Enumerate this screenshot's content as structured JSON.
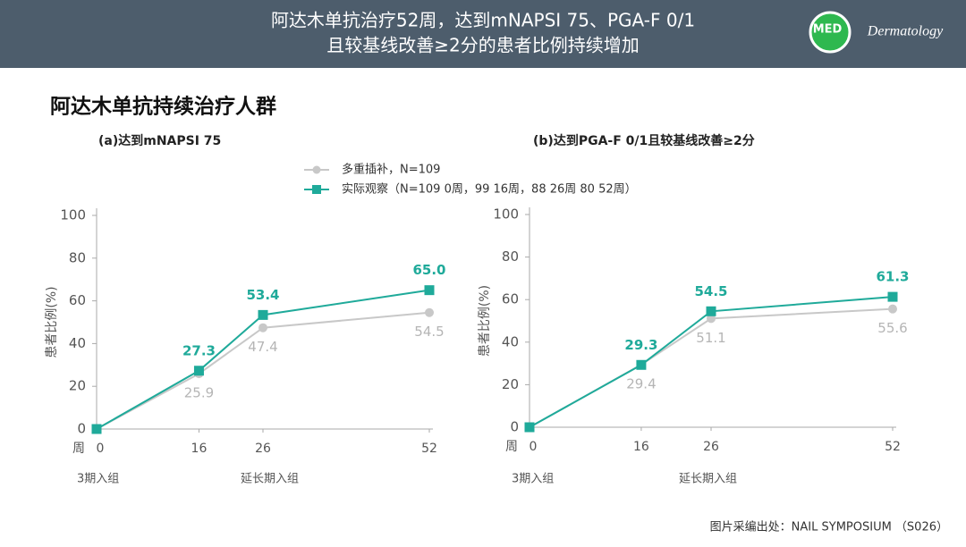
{
  "header": {
    "title_line1": "阿达木单抗治疗52周，达到mNAPSI 75、PGA-F 0/1",
    "title_line2": "且较基线改善≥2分的患者比例持续增加",
    "logo": "MED",
    "brand": "Dermatology"
  },
  "section_title": "阿达木单抗持续治疗人群",
  "footer": "图片采编出处：NAIL SYMPOSIUM （S026）",
  "chart_data": [
    {
      "type": "line",
      "title": "(a)达到mNAPSI 75",
      "ylabel": "患者比例(%)",
      "xlabel": "周",
      "x": [
        0,
        16,
        26,
        52
      ],
      "xlim": [
        0,
        52
      ],
      "xticks": [
        0,
        16,
        26,
        52
      ],
      "ylim": [
        0,
        100
      ],
      "yticks": [
        0,
        20,
        40,
        60,
        80,
        100
      ],
      "annotations": [
        "3期入组",
        "延长期入组"
      ],
      "series": [
        {
          "name": "多重插补，N=109",
          "color": "#c8c8c8",
          "marker": "circle",
          "values": [
            0,
            25.9,
            47.4,
            54.5
          ],
          "value_labels": [
            null,
            "25.9",
            "47.4",
            "54.5"
          ]
        },
        {
          "name": "实际观察（N=109 0周，99 16周，88 26周 80 52周）",
          "color": "#1faa9a",
          "marker": "square",
          "values": [
            0,
            27.3,
            53.4,
            65.0
          ],
          "value_labels": [
            null,
            "27.3",
            "53.4",
            "65.0"
          ]
        }
      ]
    },
    {
      "type": "line",
      "title": "(b)达到PGA-F 0/1且较基线改善≥2分",
      "ylabel": "患者比例(%)",
      "xlabel": "周",
      "x": [
        0,
        16,
        26,
        52
      ],
      "xlim": [
        0,
        52
      ],
      "xticks": [
        0,
        16,
        26,
        52
      ],
      "ylim": [
        0,
        100
      ],
      "yticks": [
        0,
        20,
        40,
        60,
        80,
        100
      ],
      "annotations": [
        "3期入组",
        "延长期入组"
      ],
      "series": [
        {
          "color": "#c8c8c8",
          "marker": "circle",
          "values": [
            0,
            29.4,
            51.1,
            55.6
          ],
          "value_labels": [
            null,
            "29.4",
            "51.1",
            "55.6"
          ]
        },
        {
          "color": "#1faa9a",
          "marker": "square",
          "values": [
            0,
            29.3,
            54.5,
            61.3
          ],
          "value_labels": [
            null,
            "29.3",
            "54.5",
            "61.3"
          ]
        }
      ]
    }
  ]
}
